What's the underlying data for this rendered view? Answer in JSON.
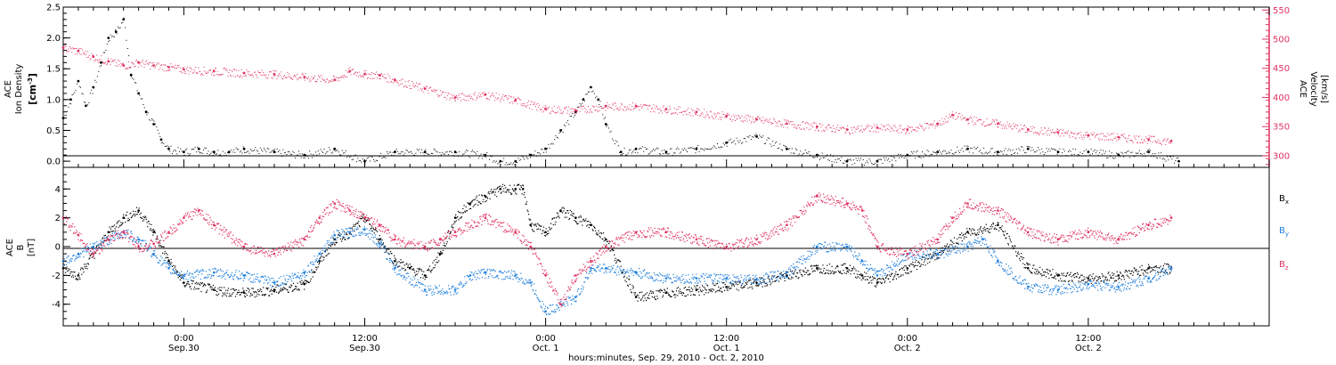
{
  "xaxis": {
    "title": "hours:minutes, Sep. 29, 2010 - Oct. 2, 2010",
    "ticks": [
      {
        "hours": 24,
        "label1": "0:00",
        "label2": "Sep.30"
      },
      {
        "hours": 36,
        "label1": "12:00",
        "label2": "Sep.30"
      },
      {
        "hours": 48,
        "label1": "0:00",
        "label2": "Oct. 1"
      },
      {
        "hours": 60,
        "label1": "12:00",
        "label2": "Oct. 1"
      },
      {
        "hours": 72,
        "label1": "0:00",
        "label2": "Oct. 2"
      },
      {
        "hours": 84,
        "label1": "12:00",
        "label2": "Oct. 2"
      }
    ],
    "range_hours": [
      16,
      96
    ]
  },
  "colors": {
    "bx": "#000000",
    "by": "#1f7fdc",
    "bz": "#e0325f",
    "velocity": "#e0325f",
    "density": "#000000"
  },
  "chart_data": [
    {
      "type": "scatter",
      "panel": "top",
      "ylabel_lines": [
        "ACE",
        "Ion Density"
      ],
      "ylabel_unit": "[cm",
      "ylabel_unit_sup": "-3",
      "ylabel_unit_end": "]",
      "ylim": [
        -0.1,
        2.5
      ],
      "yticks": [
        "0.0",
        "0.5",
        "1.0",
        "1.5",
        "2.0",
        "2.5"
      ],
      "y2label_lines": [
        "ACE",
        "Velocity"
      ],
      "y2label_unit": "[km/s]",
      "y2lim": [
        280,
        555
      ],
      "y2ticks": [
        "300",
        "350",
        "400",
        "450",
        "500",
        "550"
      ],
      "series": [
        {
          "key": "density",
          "x": [
            16.0,
            16.5,
            17.0,
            17.5,
            18.0,
            18.5,
            19.0,
            19.5,
            20.0,
            20.5,
            21.0,
            21.5,
            22.0,
            22.5,
            23.0,
            24.0,
            25.0,
            26.0,
            27.0,
            28.0,
            30.0,
            32.0,
            34.0,
            36.0,
            38.0,
            40.0,
            42.0,
            44.0,
            45.0,
            46.0,
            47.0,
            48.0,
            49.0,
            50.0,
            50.5,
            51.0,
            51.5,
            52.0,
            53.0,
            54.0,
            56.0,
            58.0,
            60.0,
            62.0,
            64.0,
            66.0,
            68.0,
            70.0,
            72.0,
            74.0,
            76.0,
            78.0,
            80.0,
            82.0,
            84.0,
            86.0,
            88.0,
            90.0
          ],
          "y": [
            0.7,
            1.0,
            1.3,
            0.9,
            1.2,
            1.6,
            2.0,
            2.1,
            2.3,
            1.4,
            1.1,
            0.8,
            0.6,
            0.35,
            0.2,
            0.15,
            0.2,
            0.15,
            0.15,
            0.2,
            0.15,
            0.1,
            0.2,
            0.0,
            0.15,
            0.15,
            0.15,
            0.1,
            0.0,
            0.0,
            0.1,
            0.2,
            0.5,
            0.8,
            1.0,
            1.2,
            1.0,
            0.6,
            0.15,
            0.2,
            0.15,
            0.2,
            0.3,
            0.4,
            0.2,
            0.1,
            0.0,
            0.0,
            0.1,
            0.15,
            0.2,
            0.15,
            0.2,
            0.15,
            0.15,
            0.1,
            0.15,
            0.0
          ]
        },
        {
          "key": "velocity",
          "x": [
            16.0,
            17.0,
            18.0,
            19.0,
            20.0,
            21.0,
            22.0,
            23.0,
            24.0,
            26.0,
            28.0,
            30.0,
            32.0,
            34.0,
            35.0,
            36.0,
            37.0,
            38.0,
            40.0,
            42.0,
            44.0,
            46.0,
            48.0,
            50.0,
            52.0,
            54.0,
            56.0,
            58.0,
            60.0,
            62.0,
            64.0,
            66.0,
            68.0,
            70.0,
            72.0,
            74.0,
            75.0,
            76.0,
            78.0,
            80.0,
            82.0,
            84.0,
            86.0,
            88.0,
            89.5
          ],
          "y": [
            485,
            480,
            470,
            462,
            455,
            460,
            455,
            452,
            448,
            445,
            442,
            440,
            435,
            430,
            445,
            440,
            438,
            430,
            415,
            400,
            405,
            395,
            380,
            378,
            385,
            385,
            380,
            375,
            368,
            362,
            355,
            350,
            345,
            348,
            345,
            355,
            370,
            362,
            355,
            345,
            340,
            335,
            332,
            328,
            325
          ]
        }
      ]
    },
    {
      "type": "scatter",
      "panel": "bottom",
      "ylabel_lines": [
        "ACE",
        "B"
      ],
      "ylabel_unit": "[nT]",
      "ylim": [
        -5.5,
        5.5
      ],
      "yticks": [
        "-4",
        "-2",
        "0",
        "2",
        "4"
      ],
      "legend_position": "right",
      "series": [
        {
          "key": "bx",
          "name": "B",
          "sub": "x",
          "x": [
            16.0,
            17.0,
            18.0,
            19.0,
            20.0,
            21.0,
            22.0,
            23.0,
            24.0,
            26.0,
            28.0,
            30.0,
            32.0,
            33.0,
            34.0,
            35.0,
            36.0,
            37.0,
            38.0,
            39.0,
            40.0,
            41.0,
            42.0,
            43.0,
            44.0,
            45.0,
            46.0,
            46.5,
            47.0,
            48.0,
            49.0,
            50.0,
            51.0,
            52.0,
            54.0,
            56.0,
            58.0,
            60.0,
            62.0,
            64.0,
            66.0,
            68.0,
            69.0,
            70.0,
            72.0,
            74.0,
            76.0,
            78.0,
            80.0,
            82.0,
            84.0,
            86.0,
            88.0,
            89.5
          ],
          "y": [
            -1.5,
            -2.0,
            -0.5,
            1.0,
            2.0,
            2.5,
            1.0,
            -1.0,
            -2.5,
            -3.0,
            -3.2,
            -3.0,
            -2.6,
            -1.0,
            0.5,
            1.0,
            2.0,
            0.5,
            -1.0,
            -1.5,
            -2.0,
            -0.5,
            2.0,
            3.0,
            3.5,
            4.0,
            4.0,
            4.0,
            1.5,
            1.0,
            2.5,
            2.0,
            1.5,
            0.5,
            -3.5,
            -3.2,
            -3.0,
            -2.8,
            -2.5,
            -2.0,
            -1.5,
            -1.5,
            -2.0,
            -2.5,
            -1.5,
            -0.5,
            1.0,
            1.5,
            -1.5,
            -2.0,
            -2.2,
            -2.0,
            -1.5,
            -1.5
          ]
        },
        {
          "key": "by",
          "name": "B",
          "sub": "y",
          "x": [
            16.0,
            17.0,
            18.0,
            19.0,
            20.0,
            21.0,
            22.0,
            23.0,
            24.0,
            26.0,
            28.0,
            30.0,
            32.0,
            33.0,
            34.0,
            35.0,
            36.0,
            37.0,
            38.0,
            40.0,
            42.0,
            43.0,
            44.0,
            46.0,
            47.0,
            48.0,
            49.0,
            50.0,
            51.0,
            52.0,
            54.0,
            56.0,
            58.0,
            60.0,
            62.0,
            64.0,
            66.0,
            68.0,
            69.0,
            70.0,
            72.0,
            74.0,
            76.0,
            77.0,
            78.0,
            80.0,
            82.0,
            84.0,
            86.0,
            88.0,
            89.5
          ],
          "y": [
            -1.0,
            -0.5,
            0.0,
            0.5,
            1.0,
            0.5,
            -0.5,
            -1.5,
            -2.0,
            -1.8,
            -2.0,
            -2.5,
            -1.8,
            -0.5,
            0.8,
            1.0,
            1.2,
            0.2,
            -1.5,
            -3.0,
            -3.0,
            -2.0,
            -1.8,
            -2.0,
            -2.5,
            -4.5,
            -4.0,
            -3.5,
            -1.5,
            -1.5,
            -1.8,
            -2.2,
            -2.2,
            -2.2,
            -2.3,
            -1.8,
            0.0,
            0.0,
            -1.0,
            -2.0,
            -0.5,
            -0.5,
            0.0,
            0.5,
            -1.0,
            -2.8,
            -3.0,
            -2.6,
            -2.8,
            -2.2,
            -1.5
          ]
        },
        {
          "key": "bz",
          "name": "B",
          "sub": "z",
          "x": [
            16.0,
            17.0,
            18.0,
            19.0,
            20.0,
            21.0,
            22.0,
            23.0,
            24.0,
            25.0,
            26.0,
            28.0,
            30.0,
            32.0,
            33.0,
            34.0,
            35.0,
            36.0,
            37.0,
            38.0,
            40.0,
            41.0,
            42.0,
            44.0,
            46.0,
            47.0,
            48.0,
            49.0,
            50.0,
            51.0,
            52.0,
            54.0,
            56.0,
            58.0,
            60.0,
            62.0,
            64.0,
            66.0,
            68.0,
            69.0,
            70.0,
            72.0,
            74.0,
            75.0,
            76.0,
            78.0,
            80.0,
            82.0,
            84.0,
            86.0,
            88.0,
            89.5
          ],
          "y": [
            2.0,
            0.8,
            -0.5,
            0.5,
            1.0,
            0.0,
            0.2,
            1.0,
            2.0,
            2.5,
            1.5,
            0.0,
            -0.5,
            0.5,
            2.0,
            3.0,
            2.5,
            2.0,
            1.5,
            0.5,
            0.0,
            0.5,
            1.0,
            2.0,
            1.0,
            0.0,
            -2.0,
            -4.0,
            -2.0,
            -1.0,
            0.0,
            1.0,
            1.0,
            0.5,
            0.0,
            0.5,
            1.5,
            3.5,
            3.0,
            2.5,
            0.0,
            -0.5,
            0.5,
            2.0,
            3.0,
            2.5,
            1.0,
            0.5,
            1.0,
            0.5,
            1.5,
            2.0
          ]
        }
      ]
    }
  ]
}
